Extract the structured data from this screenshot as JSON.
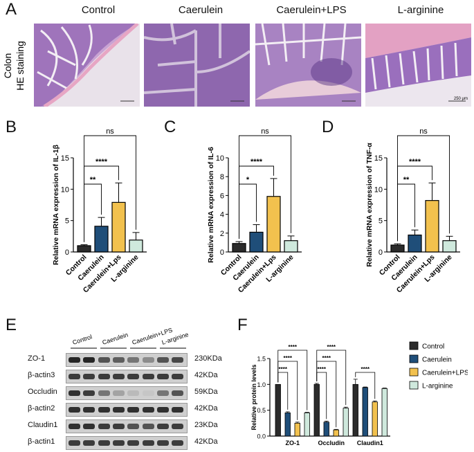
{
  "panel_a": {
    "letter": "A",
    "row_label_1": "Colon",
    "row_label_2": "HE staining",
    "columns": [
      "Control",
      "Caerulein",
      "Caerulein+LPS",
      "L-arginine"
    ],
    "scale_bar": "250 μm"
  },
  "chart_data": [
    {
      "letter": "B",
      "type": "bar",
      "ylabel": "Relative mRNA expression of  IL-1β",
      "categories": [
        "Control",
        "Caerulein",
        "Caerulein+Lps",
        "L-arginine"
      ],
      "values": [
        1.0,
        4.1,
        7.9,
        1.9
      ],
      "errors": [
        0.15,
        1.4,
        3.1,
        1.2
      ],
      "ylim": [
        0,
        15
      ],
      "yticks": [
        "0",
        "5",
        "10",
        "15"
      ],
      "colors": [
        "#2b2b2b",
        "#1f4e79",
        "#f2c14e",
        "#cfe9dd"
      ],
      "significance": [
        "**",
        "****",
        "ns"
      ]
    },
    {
      "letter": "C",
      "type": "bar",
      "ylabel": "Relative mRNA expression of  IL-6",
      "categories": [
        "Control",
        "Caerulein",
        "Caerulein+Lps",
        "L-arginine"
      ],
      "values": [
        0.9,
        2.1,
        5.9,
        1.2
      ],
      "errors": [
        0.2,
        0.8,
        1.9,
        0.5
      ],
      "ylim": [
        0,
        10
      ],
      "yticks": [
        "0",
        "2",
        "4",
        "6",
        "8",
        "10"
      ],
      "colors": [
        "#2b2b2b",
        "#1f4e79",
        "#f2c14e",
        "#cfe9dd"
      ],
      "significance": [
        "*",
        "****",
        "ns"
      ]
    },
    {
      "letter": "D",
      "type": "bar",
      "ylabel": "Relative mRNA expression of  TNF-α",
      "categories": [
        "Control",
        "Caerulein",
        "Caerulein+Lps",
        "L-arginine"
      ],
      "values": [
        1.1,
        2.7,
        8.2,
        1.8
      ],
      "errors": [
        0.2,
        0.8,
        2.8,
        0.7
      ],
      "ylim": [
        0,
        15
      ],
      "yticks": [
        "0",
        "5",
        "10",
        "15"
      ],
      "colors": [
        "#2b2b2b",
        "#1f4e79",
        "#f2c14e",
        "#cfe9dd"
      ],
      "significance": [
        "**",
        "****",
        "ns"
      ]
    },
    {
      "letter": "F",
      "type": "bar",
      "ylabel": "Relative protein levels",
      "categories": [
        "ZO-1",
        "Occludin",
        "Claudin1"
      ],
      "series": [
        {
          "name": "Control",
          "values": [
            1.0,
            1.0,
            1.0
          ],
          "errors": [
            0.0,
            0.02,
            0.1
          ]
        },
        {
          "name": "Caerulein",
          "values": [
            0.45,
            0.27,
            0.94
          ],
          "errors": [
            0.02,
            0.02,
            0.01
          ]
        },
        {
          "name": "Caerulein+LPS",
          "values": [
            0.25,
            0.12,
            0.66
          ],
          "errors": [
            0.02,
            0.01,
            0.02
          ]
        },
        {
          "name": "L-arginine",
          "values": [
            0.45,
            0.54,
            0.92
          ],
          "errors": [
            0.01,
            0.02,
            0.01
          ]
        }
      ],
      "ylim": [
        0,
        1.5
      ],
      "yticks": [
        "0.0",
        "0.5",
        "1.0",
        "1.5"
      ],
      "colors": [
        "#2b2b2b",
        "#1f4e79",
        "#f2c14e",
        "#cfe9dd"
      ],
      "significance": [
        "****",
        "****",
        "****",
        "****",
        "****",
        "****",
        "****"
      ]
    }
  ],
  "panel_e": {
    "letter": "E",
    "groups": [
      "Control",
      "Caerulein",
      "Caerulein+LPS",
      "L-arginine"
    ],
    "bands": [
      {
        "label": "ZO-1",
        "kda": "230KDa",
        "intensity": [
          0.95,
          0.95,
          0.75,
          0.7,
          0.6,
          0.5,
          0.75,
          0.8
        ]
      },
      {
        "label": "β-actin3",
        "kda": "42KDa",
        "intensity": [
          0.85,
          0.85,
          0.85,
          0.85,
          0.85,
          0.85,
          0.85,
          0.85
        ]
      },
      {
        "label": "Occludin",
        "kda": "59KDa",
        "intensity": [
          0.9,
          0.85,
          0.6,
          0.4,
          0.3,
          0.25,
          0.6,
          0.75
        ]
      },
      {
        "label": "β-actin2",
        "kda": "42KDa",
        "intensity": [
          0.9,
          0.9,
          0.9,
          0.9,
          0.9,
          0.9,
          0.9,
          0.9
        ]
      },
      {
        "label": "Claudin1",
        "kda": "23KDa",
        "intensity": [
          0.9,
          0.9,
          0.85,
          0.85,
          0.75,
          0.75,
          0.85,
          0.85
        ]
      },
      {
        "label": "β-actin1",
        "kda": "42KDa",
        "intensity": [
          0.85,
          0.85,
          0.85,
          0.85,
          0.85,
          0.85,
          0.85,
          0.85
        ]
      }
    ]
  }
}
